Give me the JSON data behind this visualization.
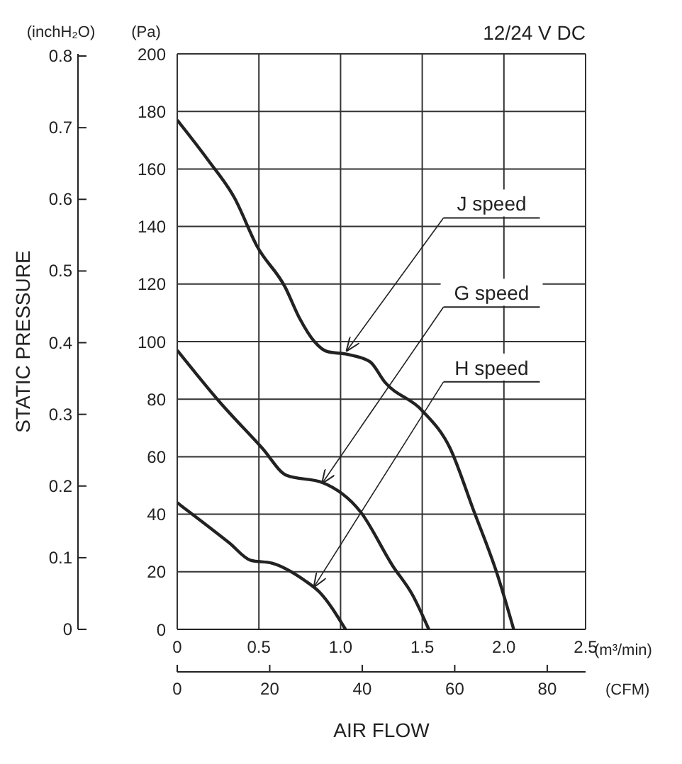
{
  "chart_data": {
    "type": "line",
    "title": "12/24 V DC",
    "xlabel": "AIR FLOW",
    "y2label": "STATIC PRESSURE",
    "xlim": [
      0,
      2.5
    ],
    "xticks": [
      0,
      0.5,
      {
        "value": 1,
        "label": "1.0"
      },
      1.5,
      {
        "value": 2,
        "label": "2.0"
      },
      2.5
    ],
    "ylim": [
      0,
      200
    ],
    "yticks": [
      0,
      20,
      40,
      60,
      80,
      100,
      120,
      140,
      160,
      180,
      200
    ],
    "y2lim": [
      0,
      0.803
    ],
    "y2ticks": [
      0,
      0.1,
      0.2,
      0.3,
      0.4,
      0.5,
      0.6,
      0.7,
      0.8
    ],
    "x2lim": [
      0,
      88.29
    ],
    "x2ticks": [
      0,
      20,
      40,
      60,
      80
    ],
    "grid": true,
    "line_style": "solid",
    "marker": "none",
    "series": [
      {
        "color": "#222222",
        "x": [
          0,
          0.19,
          0.35,
          0.49,
          0.66,
          0.75,
          0.84,
          0.92,
          1.04,
          1.18,
          1.27,
          1.5,
          1.67,
          1.81,
          1.96,
          2.06
        ],
        "values": [
          177,
          163,
          150,
          133,
          119,
          108,
          100,
          96.5,
          95.6,
          93,
          86,
          76,
          63,
          42,
          19,
          0
        ]
      },
      {
        "color": "#222222",
        "x": [
          0,
          0.26,
          0.52,
          0.67,
          0.89,
          1.12,
          1.32,
          1.44,
          1.54
        ],
        "values": [
          97,
          79,
          63,
          53.5,
          51,
          41,
          22,
          12,
          0
        ]
      },
      {
        "color": "#222222",
        "x": [
          0,
          0.32,
          0.45,
          0.58,
          0.78,
          0.87,
          1.03
        ],
        "values": [
          44,
          30,
          24,
          23,
          17,
          13,
          0
        ]
      }
    ],
    "annotations": [
      {
        "text": "J speed",
        "x": 1.04,
        "y": 97
      },
      {
        "text": "G speed",
        "x": 0.89,
        "y": 51
      },
      {
        "text": "H speed",
        "x": 0.84,
        "y": 15
      },
      "(Pa)",
      "(inchH₂O)",
      "(m³/min)",
      "(CFM)"
    ]
  }
}
